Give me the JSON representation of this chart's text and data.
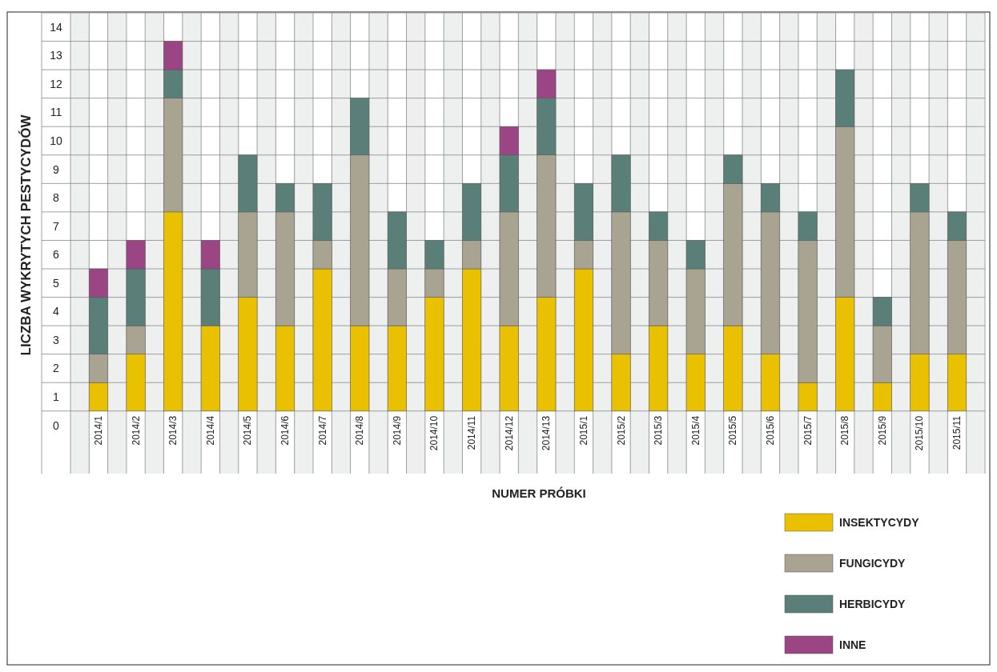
{
  "chart_data": {
    "type": "bar",
    "stacked": true,
    "xlabel": "NUMER PRÓBKI",
    "ylabel": "LICZBA WYKRYTYCH PESTYCYDÓW",
    "categories": [
      "2014/1",
      "2014/2",
      "2014/3",
      "2014/4",
      "2014/5",
      "2014/6",
      "2014/7",
      "2014/8",
      "2014/9",
      "2014/10",
      "2014/11",
      "2014/12",
      "2014/13",
      "2015/1",
      "2015/2",
      "2015/3",
      "2015/4",
      "2015/5",
      "2015/6",
      "2015/7",
      "2015/8",
      "2015/9",
      "2015/10",
      "2015/11"
    ],
    "series": [
      {
        "name": "INSEKTYCYDY",
        "color": "#e9c100",
        "values": [
          1,
          2,
          7,
          3,
          4,
          3,
          5,
          3,
          3,
          4,
          5,
          3,
          4,
          5,
          2,
          3,
          2,
          3,
          2,
          1,
          4,
          1,
          2,
          2
        ]
      },
      {
        "name": "FUNGICYDY",
        "color": "#a8a491",
        "values": [
          1,
          1,
          4,
          0,
          3,
          4,
          1,
          6,
          2,
          1,
          1,
          4,
          5,
          1,
          5,
          3,
          3,
          5,
          5,
          5,
          6,
          2,
          5,
          4
        ]
      },
      {
        "name": "HERBICYDY",
        "color": "#5a7f78",
        "values": [
          2,
          2,
          1,
          2,
          2,
          1,
          2,
          2,
          2,
          1,
          2,
          2,
          2,
          2,
          2,
          1,
          1,
          1,
          1,
          1,
          2,
          1,
          1,
          1
        ]
      },
      {
        "name": "INNE",
        "color": "#9c4585",
        "values": [
          1,
          1,
          1,
          1,
          0,
          0,
          0,
          0,
          0,
          0,
          0,
          1,
          1,
          0,
          0,
          0,
          0,
          0,
          0,
          0,
          0,
          0,
          0,
          0
        ]
      }
    ],
    "ylim": [
      -2.2,
      14
    ],
    "yticks": [
      {
        "value": -0.5,
        "label": "0"
      },
      {
        "value": 0.5,
        "label": "1"
      },
      {
        "value": 1.5,
        "label": "2"
      },
      {
        "value": 2.5,
        "label": "3"
      },
      {
        "value": 3.5,
        "label": "4"
      },
      {
        "value": 4.5,
        "label": "5"
      },
      {
        "value": 5.5,
        "label": "6"
      },
      {
        "value": 6.5,
        "label": "7"
      },
      {
        "value": 7.5,
        "label": "8"
      },
      {
        "value": 8.5,
        "label": "9"
      },
      {
        "value": 9.5,
        "label": "10"
      },
      {
        "value": 10.5,
        "label": "11"
      },
      {
        "value": 11.5,
        "label": "12"
      },
      {
        "value": 12.5,
        "label": "13"
      },
      {
        "value": 13.5,
        "label": "14"
      }
    ],
    "grid": true,
    "legend": "bottom right"
  }
}
